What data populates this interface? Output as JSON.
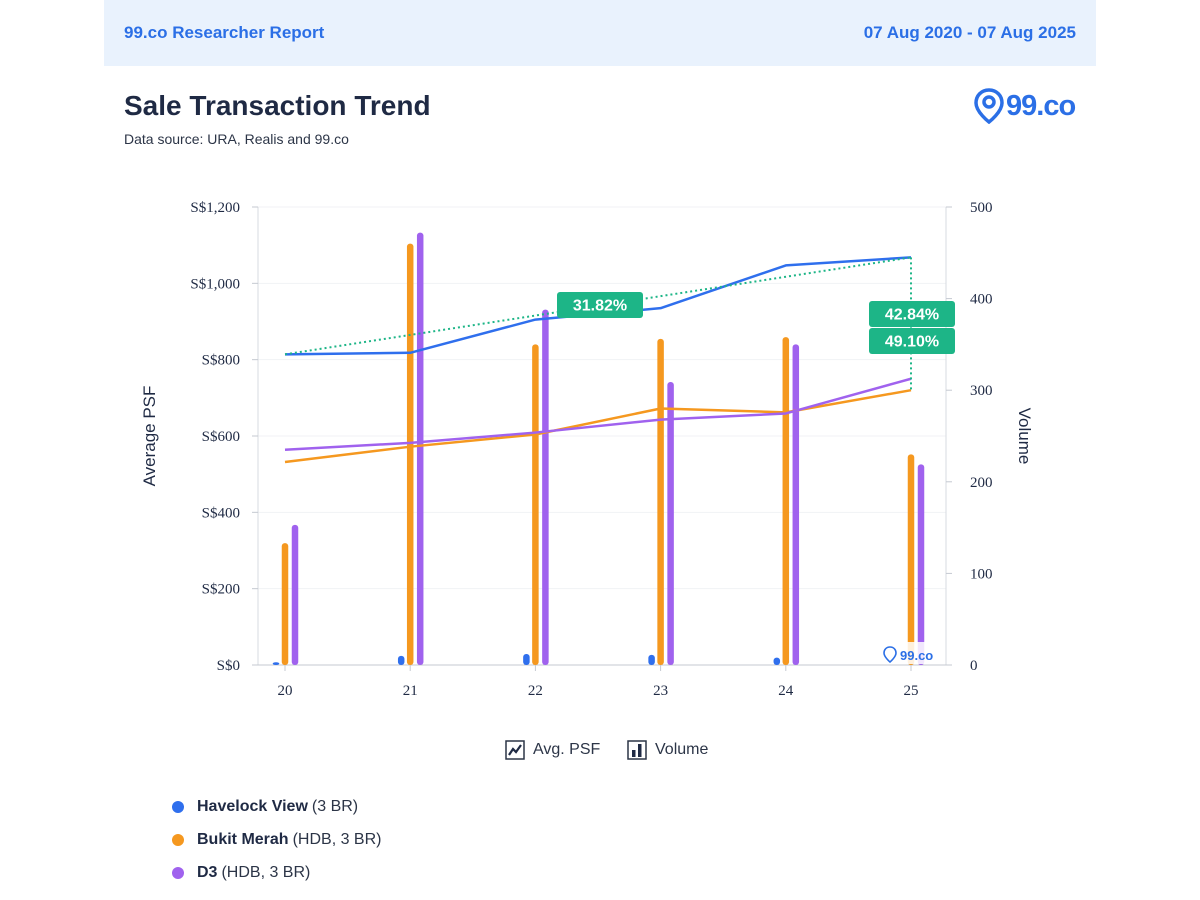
{
  "header": {
    "report_label": "99.co Researcher Report",
    "date_range": "07 Aug 2020 - 07 Aug 2025"
  },
  "title": "Sale Transaction Trend",
  "subtitle": "Data source: URA, Realis and 99.co",
  "logo": {
    "text": "99.co",
    "color": "#2b6fe6"
  },
  "toggles": [
    {
      "label": "Avg. PSF",
      "icon": "line-chart-icon"
    },
    {
      "label": "Volume",
      "icon": "bar-chart-icon"
    }
  ],
  "series_legend": [
    {
      "name": "Havelock View",
      "detail": "(3 BR)",
      "color": "#2f6fed"
    },
    {
      "name": "Bukit Merah",
      "detail": "(HDB, 3 BR)",
      "color": "#f5981f"
    },
    {
      "name": "D3",
      "detail": "(HDB, 3 BR)",
      "color": "#a062ee"
    }
  ],
  "chart_data": {
    "type": "bar",
    "categories": [
      "20",
      "21",
      "22",
      "23",
      "24",
      "25"
    ],
    "ylabel": "Average PSF",
    "y2label": "Volume",
    "ylim": [
      0,
      1200
    ],
    "y2lim": [
      0,
      500
    ],
    "yticks": [
      "S$0",
      "S$200",
      "S$400",
      "S$600",
      "S$800",
      "S$1,000",
      "S$1,200"
    ],
    "yticks_values": [
      0,
      200,
      400,
      600,
      800,
      1000,
      1200
    ],
    "y2ticks": [
      "0",
      "100",
      "200",
      "300",
      "400",
      "500"
    ],
    "y2ticks_values": [
      0,
      100,
      200,
      300,
      400,
      500
    ],
    "grid": true,
    "series": [
      {
        "name": "Havelock View",
        "color": "#2f6fed",
        "volume": [
          3,
          10,
          12,
          11,
          8,
          0
        ],
        "psf": [
          814,
          818,
          905,
          935,
          1047,
          1068
        ]
      },
      {
        "name": "Bukit Merah",
        "color": "#f5981f",
        "volume": [
          133,
          460,
          350,
          356,
          358,
          230
        ],
        "psf": [
          532,
          572,
          604,
          672,
          662,
          720
        ]
      },
      {
        "name": "D3",
        "color": "#a062ee",
        "volume": [
          153,
          472,
          388,
          309,
          350,
          219
        ],
        "psf": [
          564,
          582,
          609,
          643,
          659,
          750
        ]
      }
    ],
    "annotations": [
      {
        "text": "31.82%",
        "color": "#1db587"
      },
      {
        "text": "42.84%",
        "color": "#1db587"
      },
      {
        "text": "49.10%",
        "color": "#1db587"
      }
    ],
    "trend_color": "#1db587",
    "watermark": "99.co"
  }
}
